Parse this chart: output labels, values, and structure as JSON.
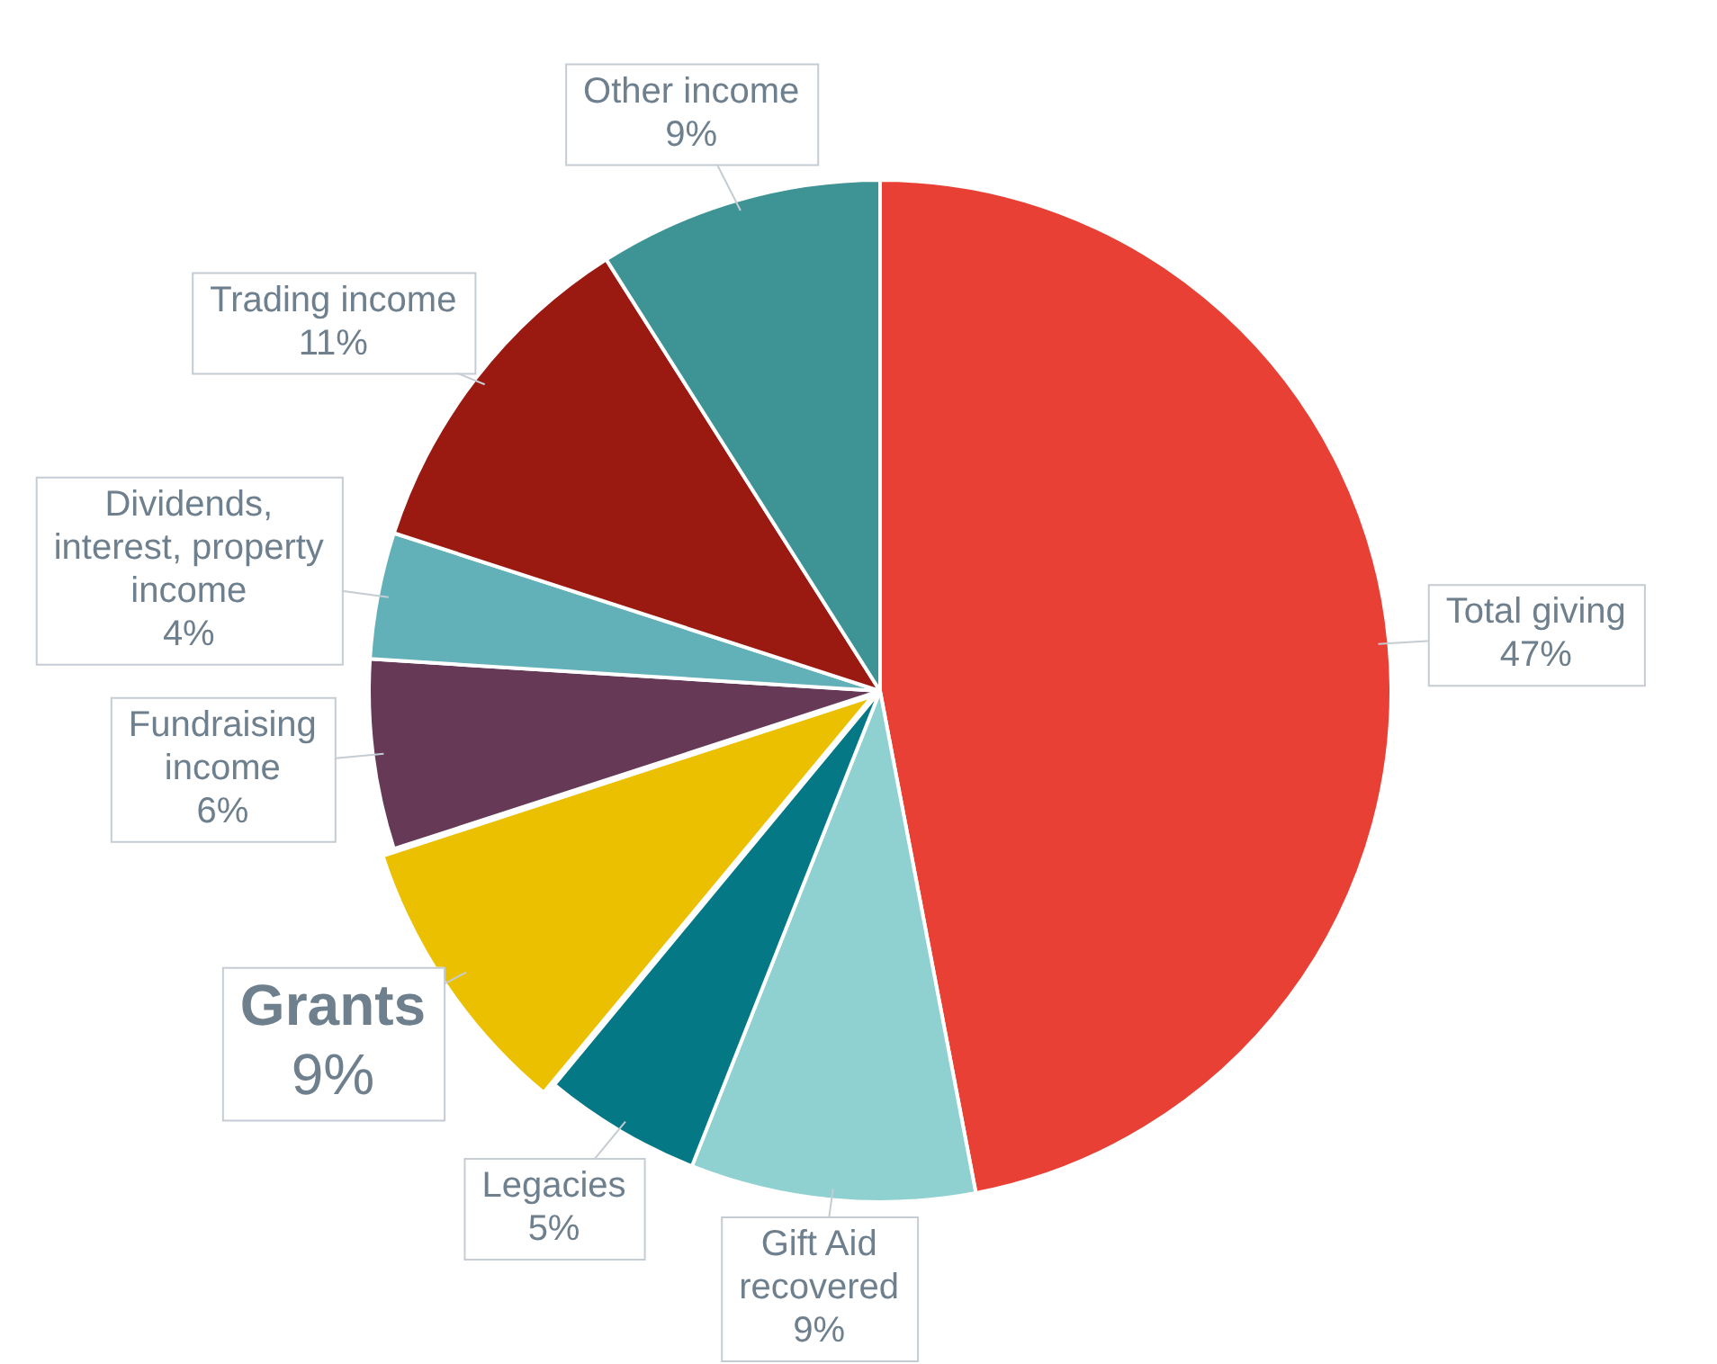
{
  "chart_data": {
    "type": "pie",
    "categories": [
      "Total giving",
      "Gift Aid recovered",
      "Legacies",
      "Grants",
      "Fundraising income",
      "Dividends, interest, property income",
      "Trading income",
      "Other income"
    ],
    "values": [
      47,
      9,
      5,
      9,
      6,
      4,
      11,
      9
    ],
    "colors": [
      "#e84034",
      "#8fd0d0",
      "#047884",
      "#eac000",
      "#663a57",
      "#62b0b8",
      "#9a1a12",
      "#3e9494"
    ],
    "value_labels": [
      "47%",
      "9%",
      "5%",
      "9%",
      "6%",
      "4%",
      "11%",
      "9%"
    ],
    "legend": false
  }
}
